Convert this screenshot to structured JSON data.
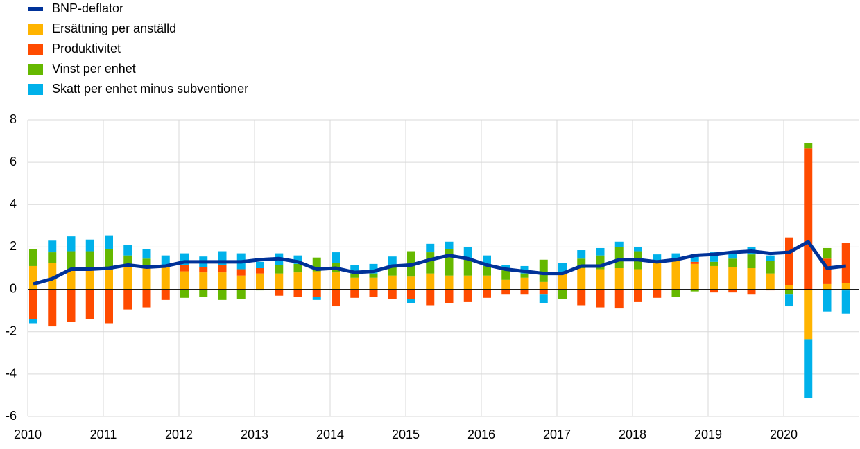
{
  "chart_data": {
    "type": "bar",
    "stacked": true,
    "grid": true,
    "legend": "top-left",
    "categories": [
      "2010",
      null,
      null,
      null,
      "2011",
      null,
      null,
      null,
      "2012",
      null,
      null,
      null,
      "2013",
      null,
      null,
      null,
      "2014",
      null,
      null,
      null,
      "2015",
      null,
      null,
      null,
      "2016",
      null,
      null,
      null,
      "2017",
      null,
      null,
      null,
      "2018",
      null,
      null,
      null,
      "2019",
      null,
      null,
      null,
      "2020",
      null,
      null,
      null
    ],
    "ylim": [
      -6,
      8
    ],
    "yticks": [
      -6,
      -4,
      -2,
      0,
      2,
      4,
      6,
      8
    ],
    "series": [
      {
        "name": "BNP-deflator",
        "type": "line",
        "color": "#003299",
        "values": [
          0.25,
          0.5,
          0.95,
          0.95,
          1.0,
          1.15,
          1.05,
          1.1,
          1.3,
          1.3,
          1.3,
          1.3,
          1.4,
          1.45,
          1.3,
          0.95,
          1.0,
          0.8,
          0.85,
          1.1,
          1.15,
          1.4,
          1.6,
          1.45,
          1.15,
          0.95,
          0.85,
          0.75,
          0.75,
          1.1,
          1.1,
          1.4,
          1.4,
          1.3,
          1.4,
          1.6,
          1.65,
          1.75,
          1.8,
          1.7,
          1.75,
          2.25,
          1.0,
          1.1
        ]
      },
      {
        "name": "Ersättning per anställd",
        "color": "#ffb400",
        "values": [
          1.1,
          1.25,
          0.9,
          0.9,
          0.9,
          1.1,
          1.0,
          1.1,
          0.85,
          0.8,
          0.8,
          0.65,
          0.75,
          0.75,
          0.8,
          0.85,
          0.8,
          0.55,
          0.55,
          0.65,
          0.6,
          0.75,
          0.65,
          0.65,
          0.65,
          0.45,
          0.55,
          0.35,
          0.8,
          1.0,
          0.95,
          1.0,
          0.95,
          1.3,
          1.45,
          1.2,
          1.1,
          1.05,
          1.0,
          0.75,
          0.2,
          -2.35,
          0.25,
          0.3
        ]
      },
      {
        "name": "Produktivitet",
        "color": "#ff4b00",
        "values": [
          -1.4,
          -1.75,
          -1.55,
          -1.4,
          -1.6,
          -0.95,
          -0.85,
          -0.5,
          0.3,
          0.25,
          0.35,
          0.3,
          0.25,
          -0.3,
          -0.35,
          -0.35,
          -0.8,
          -0.4,
          -0.35,
          -0.45,
          -0.45,
          -0.75,
          -0.65,
          -0.6,
          -0.4,
          -0.25,
          -0.25,
          -0.25,
          0.0,
          -0.75,
          -0.85,
          -0.9,
          -0.6,
          -0.4,
          0.0,
          0.1,
          -0.15,
          -0.15,
          -0.25,
          -0.05,
          2.25,
          6.65,
          1.2,
          1.9
        ]
      },
      {
        "name": "Vinst per enhet",
        "color": "#65b800",
        "values": [
          0.8,
          0.5,
          0.9,
          0.9,
          1.0,
          0.5,
          0.45,
          0.05,
          -0.4,
          -0.35,
          -0.5,
          -0.45,
          -0.05,
          0.4,
          0.4,
          0.65,
          0.45,
          0.2,
          0.2,
          0.4,
          1.2,
          1.0,
          1.25,
          0.75,
          0.45,
          0.45,
          0.2,
          1.05,
          -0.45,
          0.45,
          0.65,
          1.0,
          0.85,
          0.05,
          -0.35,
          -0.1,
          0.2,
          0.4,
          0.65,
          0.6,
          -0.25,
          0.25,
          0.5,
          -0.05
        ]
      },
      {
        "name": "Skatt per enhet minus subventioner",
        "color": "#00b1ea",
        "values": [
          -0.2,
          0.55,
          0.7,
          0.55,
          0.65,
          0.5,
          0.45,
          0.45,
          0.55,
          0.5,
          0.65,
          0.75,
          0.3,
          0.55,
          0.4,
          -0.15,
          0.5,
          0.4,
          0.45,
          0.5,
          -0.2,
          0.4,
          0.35,
          0.6,
          0.5,
          0.25,
          0.35,
          -0.4,
          0.45,
          0.4,
          0.35,
          0.25,
          0.2,
          0.3,
          0.25,
          0.35,
          0.45,
          0.3,
          0.35,
          0.25,
          -0.55,
          -2.8,
          -1.05,
          -1.1
        ]
      }
    ]
  }
}
